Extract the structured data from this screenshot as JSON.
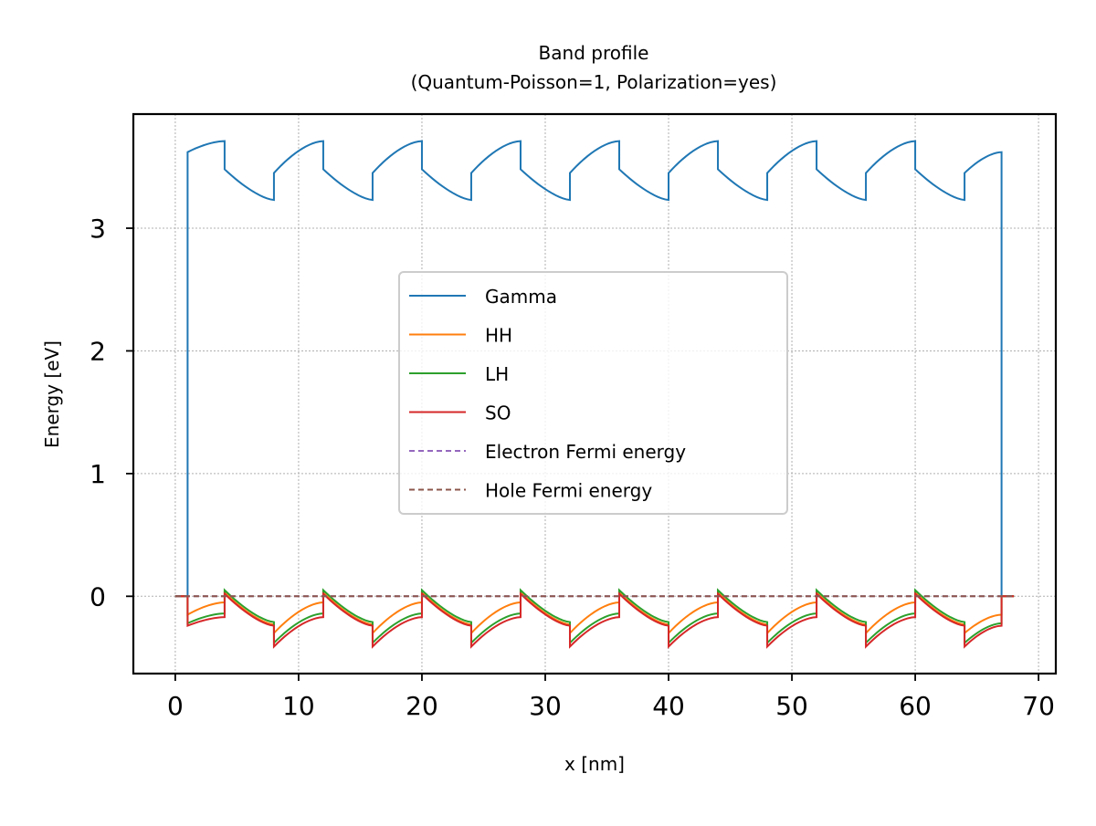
{
  "chart_data": {
    "type": "line",
    "title": "Band profile",
    "subtitle": "(Quantum-Poisson=1, Polarization=yes)",
    "xlabel": "x [nm]",
    "ylabel": "Energy [eV]",
    "xlim": [
      -3.4,
      71.4
    ],
    "ylim": [
      -0.63,
      3.93
    ],
    "xticks": [
      0,
      10,
      20,
      30,
      40,
      50,
      60,
      70
    ],
    "yticks": [
      0,
      1,
      2,
      3
    ],
    "grid": true,
    "legend_position": "center",
    "structure": {
      "x_start": 0,
      "x_end": 68,
      "barrier_left": 1,
      "barrier_right": 67,
      "period": 8,
      "segment_edges": [
        1,
        4,
        8,
        12,
        16,
        20,
        24,
        28,
        32,
        36,
        40,
        44,
        48,
        52,
        56,
        60,
        64,
        67
      ]
    },
    "series": [
      {
        "name": "Gamma",
        "color": "#1f77b4",
        "dash": "",
        "barrier_level": 0,
        "rising": {
          "start": 3.45,
          "end": 3.71,
          "first_start": 3.62,
          "last_end": 3.62
        },
        "falling": {
          "start": 3.48,
          "end": 3.23
        }
      },
      {
        "name": "HH",
        "color": "#ff7f0e",
        "dash": "",
        "barrier_level": 0,
        "rising": {
          "start": -0.3,
          "end": -0.05,
          "first_start": -0.15,
          "last_end": -0.15
        },
        "falling": {
          "start": 0.03,
          "end": -0.23
        }
      },
      {
        "name": "LH",
        "color": "#2ca02c",
        "dash": "",
        "barrier_level": 0,
        "rising": {
          "start": -0.38,
          "end": -0.14,
          "first_start": -0.22,
          "last_end": -0.22
        },
        "falling": {
          "start": 0.05,
          "end": -0.21
        }
      },
      {
        "name": "SO",
        "color": "#d62728",
        "dash": "",
        "barrier_level": 0,
        "rising": {
          "start": -0.41,
          "end": -0.17,
          "first_start": -0.24,
          "last_end": -0.24
        },
        "falling": {
          "start": 0.02,
          "end": -0.24
        }
      },
      {
        "name": "Electron Fermi energy",
        "color": "#9467bd",
        "dash": "6,4",
        "constant": 0.0
      },
      {
        "name": "Hole Fermi energy",
        "color": "#8c564b",
        "dash": "6,4",
        "constant": 0.0
      }
    ]
  }
}
